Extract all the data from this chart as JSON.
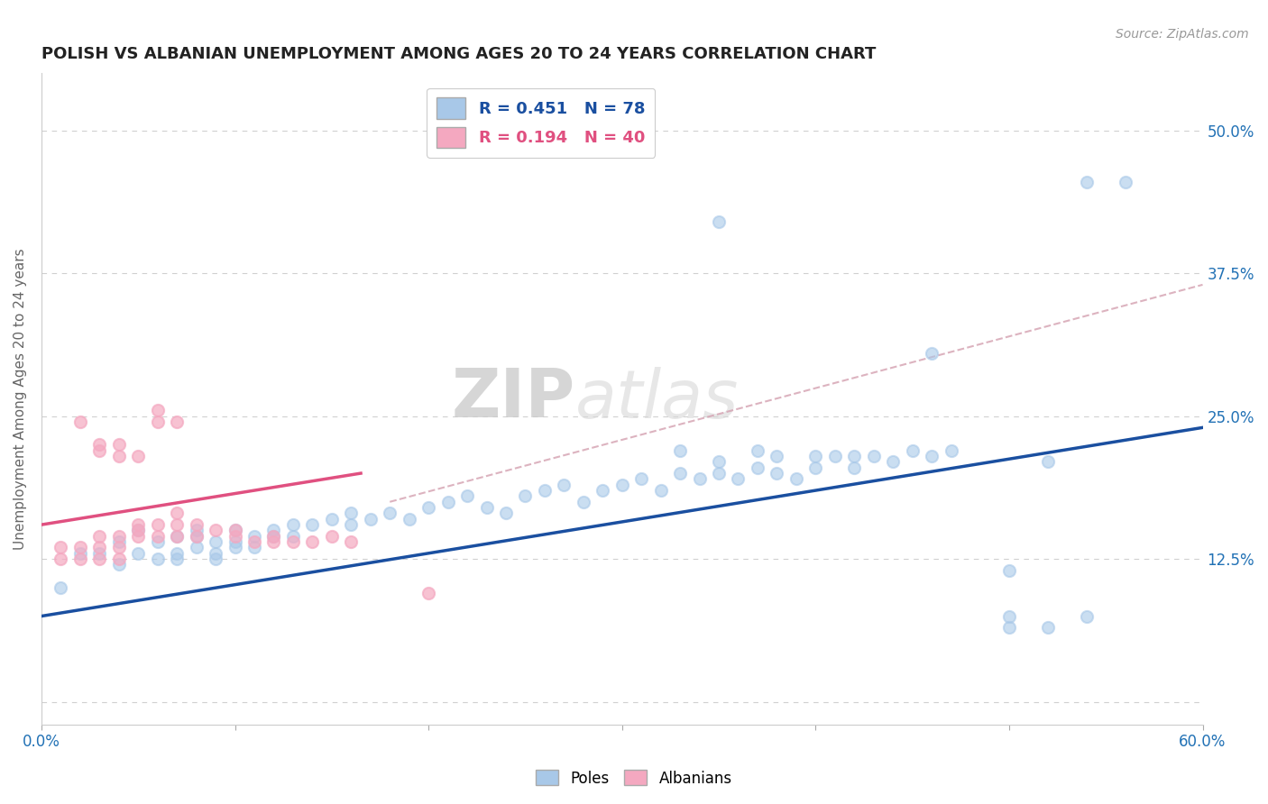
{
  "title": "POLISH VS ALBANIAN UNEMPLOYMENT AMONG AGES 20 TO 24 YEARS CORRELATION CHART",
  "source": "Source: ZipAtlas.com",
  "ylabel": "Unemployment Among Ages 20 to 24 years",
  "poles_R": "0.451",
  "poles_N": "78",
  "albanians_R": "0.194",
  "albanians_N": "40",
  "poles_color": "#a8c8e8",
  "albanians_color": "#f4a8c0",
  "poles_line_color": "#1a4fa0",
  "albanians_line_color": "#e05080",
  "xlim": [
    0.0,
    0.6
  ],
  "ylim": [
    -0.02,
    0.55
  ],
  "xticks": [
    0.0,
    0.1,
    0.2,
    0.3,
    0.4,
    0.5,
    0.6
  ],
  "yticks": [
    0.0,
    0.125,
    0.25,
    0.375,
    0.5
  ],
  "poles_scatter": [
    [
      0.01,
      0.1
    ],
    [
      0.02,
      0.13
    ],
    [
      0.03,
      0.13
    ],
    [
      0.04,
      0.12
    ],
    [
      0.04,
      0.14
    ],
    [
      0.05,
      0.13
    ],
    [
      0.05,
      0.15
    ],
    [
      0.06,
      0.125
    ],
    [
      0.06,
      0.14
    ],
    [
      0.07,
      0.13
    ],
    [
      0.07,
      0.145
    ],
    [
      0.07,
      0.125
    ],
    [
      0.08,
      0.135
    ],
    [
      0.08,
      0.145
    ],
    [
      0.08,
      0.15
    ],
    [
      0.09,
      0.13
    ],
    [
      0.09,
      0.14
    ],
    [
      0.09,
      0.125
    ],
    [
      0.1,
      0.14
    ],
    [
      0.1,
      0.135
    ],
    [
      0.1,
      0.15
    ],
    [
      0.11,
      0.145
    ],
    [
      0.11,
      0.135
    ],
    [
      0.12,
      0.145
    ],
    [
      0.12,
      0.15
    ],
    [
      0.13,
      0.155
    ],
    [
      0.13,
      0.145
    ],
    [
      0.14,
      0.155
    ],
    [
      0.15,
      0.16
    ],
    [
      0.16,
      0.155
    ],
    [
      0.16,
      0.165
    ],
    [
      0.17,
      0.16
    ],
    [
      0.18,
      0.165
    ],
    [
      0.19,
      0.16
    ],
    [
      0.2,
      0.17
    ],
    [
      0.21,
      0.175
    ],
    [
      0.22,
      0.18
    ],
    [
      0.23,
      0.17
    ],
    [
      0.24,
      0.165
    ],
    [
      0.25,
      0.18
    ],
    [
      0.26,
      0.185
    ],
    [
      0.27,
      0.19
    ],
    [
      0.28,
      0.175
    ],
    [
      0.29,
      0.185
    ],
    [
      0.3,
      0.19
    ],
    [
      0.31,
      0.195
    ],
    [
      0.32,
      0.185
    ],
    [
      0.33,
      0.2
    ],
    [
      0.34,
      0.195
    ],
    [
      0.35,
      0.2
    ],
    [
      0.36,
      0.195
    ],
    [
      0.37,
      0.205
    ],
    [
      0.38,
      0.2
    ],
    [
      0.39,
      0.195
    ],
    [
      0.4,
      0.205
    ],
    [
      0.41,
      0.215
    ],
    [
      0.42,
      0.205
    ],
    [
      0.43,
      0.215
    ],
    [
      0.44,
      0.21
    ],
    [
      0.45,
      0.22
    ],
    [
      0.46,
      0.215
    ],
    [
      0.47,
      0.22
    ],
    [
      0.33,
      0.22
    ],
    [
      0.35,
      0.21
    ],
    [
      0.38,
      0.215
    ],
    [
      0.4,
      0.215
    ],
    [
      0.42,
      0.215
    ],
    [
      0.35,
      0.42
    ],
    [
      0.37,
      0.22
    ],
    [
      0.46,
      0.305
    ],
    [
      0.5,
      0.115
    ],
    [
      0.52,
      0.21
    ],
    [
      0.54,
      0.455
    ],
    [
      0.56,
      0.455
    ],
    [
      0.52,
      0.065
    ],
    [
      0.54,
      0.075
    ],
    [
      0.5,
      0.065
    ],
    [
      0.5,
      0.075
    ]
  ],
  "albanians_scatter": [
    [
      0.01,
      0.125
    ],
    [
      0.01,
      0.135
    ],
    [
      0.02,
      0.125
    ],
    [
      0.02,
      0.135
    ],
    [
      0.03,
      0.125
    ],
    [
      0.03,
      0.135
    ],
    [
      0.03,
      0.145
    ],
    [
      0.04,
      0.125
    ],
    [
      0.04,
      0.135
    ],
    [
      0.04,
      0.145
    ],
    [
      0.05,
      0.145
    ],
    [
      0.05,
      0.15
    ],
    [
      0.05,
      0.155
    ],
    [
      0.06,
      0.145
    ],
    [
      0.06,
      0.155
    ],
    [
      0.07,
      0.145
    ],
    [
      0.07,
      0.155
    ],
    [
      0.07,
      0.165
    ],
    [
      0.02,
      0.245
    ],
    [
      0.03,
      0.225
    ],
    [
      0.03,
      0.22
    ],
    [
      0.04,
      0.215
    ],
    [
      0.04,
      0.225
    ],
    [
      0.05,
      0.215
    ],
    [
      0.08,
      0.155
    ],
    [
      0.08,
      0.145
    ],
    [
      0.09,
      0.15
    ],
    [
      0.1,
      0.15
    ],
    [
      0.1,
      0.145
    ],
    [
      0.11,
      0.14
    ],
    [
      0.12,
      0.14
    ],
    [
      0.12,
      0.145
    ],
    [
      0.13,
      0.14
    ],
    [
      0.14,
      0.14
    ],
    [
      0.15,
      0.145
    ],
    [
      0.16,
      0.14
    ],
    [
      0.06,
      0.245
    ],
    [
      0.06,
      0.255
    ],
    [
      0.07,
      0.245
    ],
    [
      0.2,
      0.095
    ]
  ],
  "poles_trendline": [
    [
      0.0,
      0.075
    ],
    [
      0.6,
      0.24
    ]
  ],
  "albanians_trendline": [
    [
      0.0,
      0.155
    ],
    [
      0.165,
      0.2
    ]
  ],
  "dashed_line": [
    [
      0.18,
      0.175
    ],
    [
      0.6,
      0.365
    ]
  ],
  "watermark_zip": "ZIP",
  "watermark_atlas": "atlas",
  "background_color": "#ffffff",
  "grid_color": "#d0d0d0"
}
